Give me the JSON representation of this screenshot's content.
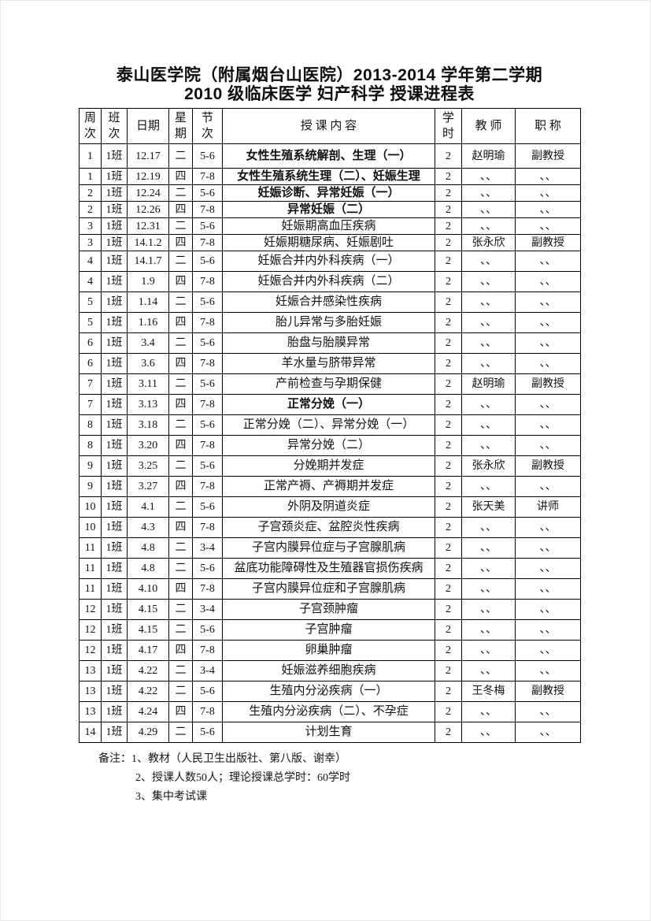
{
  "page": {
    "title_line1": "泰山医学院（附属烟台山医院）2013-2014 学年第二学期",
    "title_line2": "2010 级临床医学 妇产科学 授课进程表"
  },
  "table": {
    "headers": [
      "周\n次",
      "班\n次",
      "日期",
      "星\n期",
      "节\n次",
      "授 课 内 容",
      "学\n时",
      "教 师",
      "职 称"
    ],
    "rows": [
      {
        "week": "1",
        "cls": "1班",
        "date": "12.17",
        "day": "二",
        "period": "5-6",
        "content": "女性生殖系统解剖、生理（一）",
        "hours": "2",
        "teacher": "赵明瑜",
        "title": "副教授",
        "bold": true
      },
      {
        "week": "1",
        "cls": "1班",
        "date": "12.19",
        "day": "四",
        "period": "7-8",
        "content": "女性生殖系统生理（二）、妊娠生理",
        "hours": "2",
        "teacher": "、、",
        "title": "、、",
        "bold": true
      },
      {
        "week": "2",
        "cls": "1班",
        "date": "12.24",
        "day": "二",
        "period": "5-6",
        "content": "妊娠诊断、异常妊娠（一）",
        "hours": "2",
        "teacher": "、、",
        "title": "、、",
        "bold": true
      },
      {
        "week": "2",
        "cls": "1班",
        "date": "12.26",
        "day": "四",
        "period": "7-8",
        "content": "异常妊娠（二）",
        "hours": "2",
        "teacher": "、、",
        "title": "、、",
        "bold": true
      },
      {
        "week": "3",
        "cls": "1班",
        "date": "12.31",
        "day": "二",
        "period": "5-6",
        "content": "妊娠期高血压疾病",
        "hours": "2",
        "teacher": "、、",
        "title": "、、",
        "bold": false
      },
      {
        "week": "3",
        "cls": "1班",
        "date": "14.1.2",
        "day": "四",
        "period": "7-8",
        "content": "妊娠期糖尿病、妊娠剧吐",
        "hours": "2",
        "teacher": "张永欣",
        "title": "副教授",
        "bold": false
      },
      {
        "week": "4",
        "cls": "1班",
        "date": "14.1.7",
        "day": "二",
        "period": "5-6",
        "content": "妊娠合并内外科疾病（一）",
        "hours": "2",
        "teacher": "、、",
        "title": "、、",
        "bold": false
      },
      {
        "week": "4",
        "cls": "1班",
        "date": "1.9",
        "day": "四",
        "period": "7-8",
        "content": "妊娠合并内外科疾病（二）",
        "hours": "2",
        "teacher": "、、",
        "title": "、、",
        "bold": false
      },
      {
        "week": "5",
        "cls": "1班",
        "date": "1.14",
        "day": "二",
        "period": "5-6",
        "content": "妊娠合并感染性疾病",
        "hours": "2",
        "teacher": "、、",
        "title": "、、",
        "bold": false
      },
      {
        "week": "5",
        "cls": "1班",
        "date": "1.16",
        "day": "四",
        "period": "7-8",
        "content": "胎儿异常与多胎妊娠",
        "hours": "2",
        "teacher": "、、",
        "title": "、、",
        "bold": false
      },
      {
        "week": "6",
        "cls": "1班",
        "date": "3.4",
        "day": "二",
        "period": "5-6",
        "content": "胎盘与胎膜异常",
        "hours": "2",
        "teacher": "、、",
        "title": "、、",
        "bold": false
      },
      {
        "week": "6",
        "cls": "1班",
        "date": "3.6",
        "day": "四",
        "period": "7-8",
        "content": "羊水量与脐带异常",
        "hours": "2",
        "teacher": "、、",
        "title": "、、",
        "bold": false
      },
      {
        "week": "7",
        "cls": "1班",
        "date": "3.11",
        "day": "二",
        "period": "5-6",
        "content": "产前检查与孕期保健",
        "hours": "2",
        "teacher": "赵明瑜",
        "title": "副教授",
        "bold": false
      },
      {
        "week": "7",
        "cls": "1班",
        "date": "3.13",
        "day": "四",
        "period": "7-8",
        "content": "正常分娩（一）",
        "hours": "2",
        "teacher": "、、",
        "title": "、、",
        "bold": true
      },
      {
        "week": "8",
        "cls": "1班",
        "date": "3.18",
        "day": "二",
        "period": "5-6",
        "content": "正常分娩（二）、异常分娩（一）",
        "hours": "2",
        "teacher": "、、",
        "title": "、、",
        "bold": false
      },
      {
        "week": "8",
        "cls": "1班",
        "date": "3.20",
        "day": "四",
        "period": "7-8",
        "content": "异常分娩（二）",
        "hours": "2",
        "teacher": "、、",
        "title": "、、",
        "bold": false
      },
      {
        "week": "9",
        "cls": "1班",
        "date": "3.25",
        "day": "二",
        "period": "5-6",
        "content": "分娩期并发症",
        "hours": "2",
        "teacher": "张永欣",
        "title": "副教授",
        "bold": false
      },
      {
        "week": "9",
        "cls": "1班",
        "date": "3.27",
        "day": "四",
        "period": "7-8",
        "content": "正常产褥、产褥期并发症",
        "hours": "2",
        "teacher": "、、",
        "title": "、、",
        "bold": false
      },
      {
        "week": "10",
        "cls": "1班",
        "date": "4.1",
        "day": "二",
        "period": "5-6",
        "content": "外阴及阴道炎症",
        "hours": "2",
        "teacher": "张天美",
        "title": "讲师",
        "bold": false
      },
      {
        "week": "10",
        "cls": "1班",
        "date": "4.3",
        "day": "四",
        "period": "7-8",
        "content": "子宫颈炎症、盆腔炎性疾病",
        "hours": "2",
        "teacher": "、、",
        "title": "、、",
        "bold": false
      },
      {
        "week": "11",
        "cls": "1班",
        "date": "4.8",
        "day": "二",
        "period": "3-4",
        "content": "子宫内膜异位症与子宫腺肌病",
        "hours": "2",
        "teacher": "、、",
        "title": "、、",
        "bold": false
      },
      {
        "week": "11",
        "cls": "1班",
        "date": "4.8",
        "day": "二",
        "period": "5-6",
        "content": "盆底功能障碍性及生殖器官损伤疾病",
        "hours": "2",
        "teacher": "、、",
        "title": "、、",
        "bold": false
      },
      {
        "week": "11",
        "cls": "1班",
        "date": "4.10",
        "day": "四",
        "period": "7-8",
        "content": "子宫内膜异位症和子宫腺肌病",
        "hours": "2",
        "teacher": "、、",
        "title": "、、",
        "bold": false
      },
      {
        "week": "12",
        "cls": "1班",
        "date": "4.15",
        "day": "二",
        "period": "3-4",
        "content": "子宫颈肿瘤",
        "hours": "2",
        "teacher": "、、",
        "title": "、、",
        "bold": false
      },
      {
        "week": "12",
        "cls": "1班",
        "date": "4.15",
        "day": "二",
        "period": "5-6",
        "content": "子宫肿瘤",
        "hours": "2",
        "teacher": "、、",
        "title": "、、",
        "bold": false
      },
      {
        "week": "12",
        "cls": "1班",
        "date": "4.17",
        "day": "四",
        "period": "7-8",
        "content": "卵巢肿瘤",
        "hours": "2",
        "teacher": "、、",
        "title": "、、",
        "bold": false
      },
      {
        "week": "13",
        "cls": "1班",
        "date": "4.22",
        "day": "二",
        "period": "3-4",
        "content": "妊娠滋养细胞疾病",
        "hours": "2",
        "teacher": "、、",
        "title": "、、",
        "bold": false
      },
      {
        "week": "13",
        "cls": "1班",
        "date": "4.22",
        "day": "二",
        "period": "5-6",
        "content": "生殖内分泌疾病（一）",
        "hours": "2",
        "teacher": "王冬梅",
        "title": "副教授",
        "bold": false
      },
      {
        "week": "13",
        "cls": "1班",
        "date": "4.24",
        "day": "四",
        "period": "7-8",
        "content": "生殖内分泌疾病（二）、不孕症",
        "hours": "2",
        "teacher": "、、",
        "title": "、、",
        "bold": false
      },
      {
        "week": "14",
        "cls": "1班",
        "date": "4.29",
        "day": "二",
        "period": "5-6",
        "content": "计划生育",
        "hours": "2",
        "teacher": "、、",
        "title": "、、",
        "bold": false
      }
    ]
  },
  "notes": {
    "label": "备注：",
    "items": [
      "1、教材（人民卫生出版社、第八版、谢幸）",
      "2、授课人数50人；理论授课总学时：60学时",
      "3、集中考试课"
    ]
  }
}
